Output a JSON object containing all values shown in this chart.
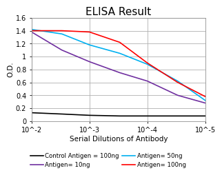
{
  "title": "ELISA Result",
  "xlabel": "Serial Dilutions of Antibody",
  "ylabel": "O.D.",
  "ylim": [
    0,
    1.6
  ],
  "yticks": [
    0,
    0.2,
    0.4,
    0.6,
    0.8,
    1.0,
    1.2,
    1.4,
    1.6
  ],
  "ytick_labels": [
    "0",
    "0.2",
    "0.4",
    "0.6",
    "0.8",
    "1",
    "1.2",
    "1.4",
    "1.6"
  ],
  "xtick_positions": [
    0.01,
    0.001,
    0.0001,
    1e-05
  ],
  "xtick_labels": [
    "10^-2",
    "10^-3",
    "10^-4",
    "10^-5"
  ],
  "lines": [
    {
      "label": "Control Antigen = 100ng",
      "color": "#000000",
      "x": [
        0.01,
        0.003,
        0.001,
        0.0003,
        0.0001,
        3e-05,
        1e-05
      ],
      "y": [
        0.13,
        0.11,
        0.09,
        0.08,
        0.08,
        0.08,
        0.08
      ]
    },
    {
      "label": "Antigen= 10ng",
      "color": "#7030a0",
      "x": [
        0.01,
        0.003,
        0.001,
        0.0003,
        0.0001,
        3e-05,
        1e-05
      ],
      "y": [
        1.38,
        1.1,
        0.92,
        0.75,
        0.62,
        0.4,
        0.28
      ]
    },
    {
      "label": "Antigen= 50ng",
      "color": "#00b0f0",
      "x": [
        0.01,
        0.003,
        0.001,
        0.0003,
        0.0001,
        3e-05,
        1e-05
      ],
      "y": [
        1.42,
        1.35,
        1.18,
        1.05,
        0.88,
        0.62,
        0.32
      ]
    },
    {
      "label": "Antigen= 100ng",
      "color": "#ff0000",
      "x": [
        0.01,
        0.003,
        0.001,
        0.0003,
        0.0001,
        3e-05,
        1e-05
      ],
      "y": [
        1.4,
        1.4,
        1.38,
        1.22,
        0.9,
        0.6,
        0.38
      ]
    }
  ],
  "legend_fontsize": 6.2,
  "title_fontsize": 11,
  "axis_label_fontsize": 7.5,
  "tick_fontsize": 7,
  "background_color": "#ffffff",
  "grid_color": "#b0b0b0"
}
